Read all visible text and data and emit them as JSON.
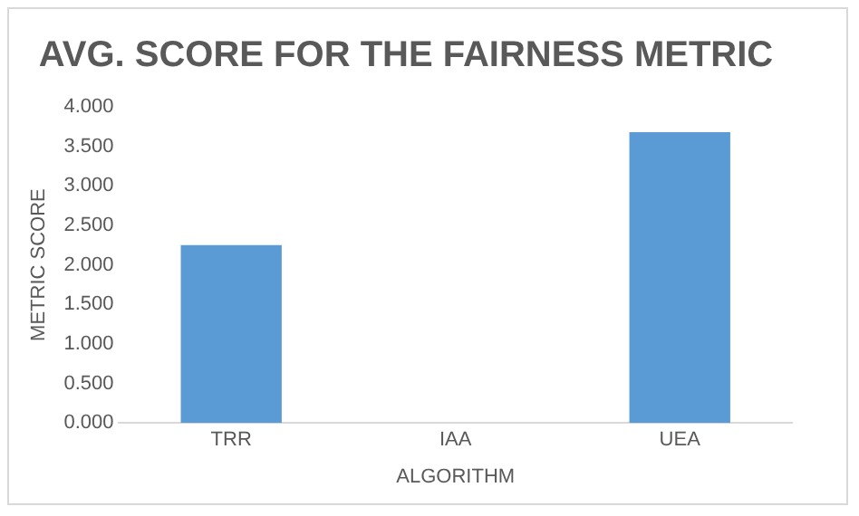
{
  "chart_data": {
    "type": "bar",
    "title": "AVG. SCORE FOR THE FAIRNESS METRIC",
    "xlabel": "ALGORITHM",
    "ylabel": "METRIC SCORE",
    "categories": [
      "TRR",
      "IAA",
      "UEA"
    ],
    "values": [
      2.25,
      0,
      3.68
    ],
    "color": "#5b9bd5",
    "ylim": [
      0,
      4
    ],
    "yticks": [
      {
        "value": 0,
        "label": "0.000"
      },
      {
        "value": 0.5,
        "label": "0.500"
      },
      {
        "value": 1,
        "label": "1.000"
      },
      {
        "value": 1.5,
        "label": "1.500"
      },
      {
        "value": 2,
        "label": "2.000"
      },
      {
        "value": 2.5,
        "label": "2.500"
      },
      {
        "value": 3,
        "label": "3.000"
      },
      {
        "value": 3.5,
        "label": "3.500"
      },
      {
        "value": 4,
        "label": "4.000"
      }
    ],
    "grid": false,
    "legend": false
  }
}
